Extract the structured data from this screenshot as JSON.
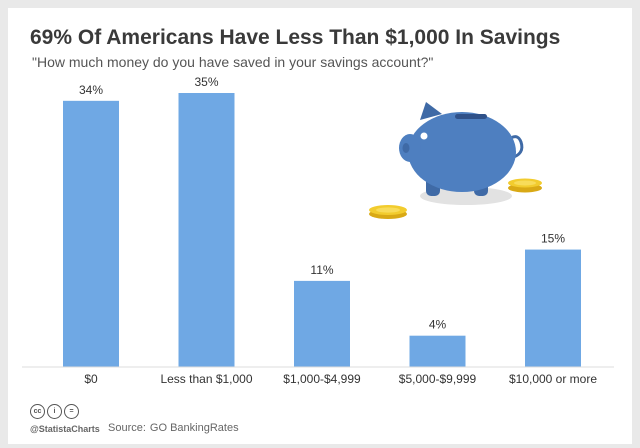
{
  "header": {
    "title": "69% Of Americans Have Less Than $1,000 In Savings",
    "subtitle": "\"How much money do you have saved in your savings account?\""
  },
  "chart_data": {
    "type": "bar",
    "title": "69% Of Americans Have Less Than $1,000 In Savings",
    "subtitle": "\"How much money do you have saved in your savings account?\"",
    "categories": [
      "$0",
      "Less than $1,000",
      "$1,000-$4,999",
      "$5,000-$9,999",
      "$10,000 or more"
    ],
    "values": [
      34,
      35,
      11,
      4,
      15
    ],
    "data_labels": [
      "34%",
      "35%",
      "11%",
      "4%",
      "15%"
    ],
    "xlabel": "",
    "ylabel": "",
    "ylim": [
      0,
      35
    ],
    "grid": false,
    "legend": "none",
    "bar_color": "#6fa8e4"
  },
  "footer": {
    "cc_icons": [
      "creative-commons",
      "attribution",
      "no-derivatives"
    ],
    "cc_glyphs": [
      "cc",
      "i",
      "="
    ],
    "brand": "@StatistaCharts",
    "source_label": "Source:",
    "source_value": "GO BankingRates"
  },
  "colors": {
    "bar": "#6fa8e4",
    "piggy": "#4e7fc0",
    "coin": "#f2cc2e",
    "title": "#3a3a3a"
  }
}
